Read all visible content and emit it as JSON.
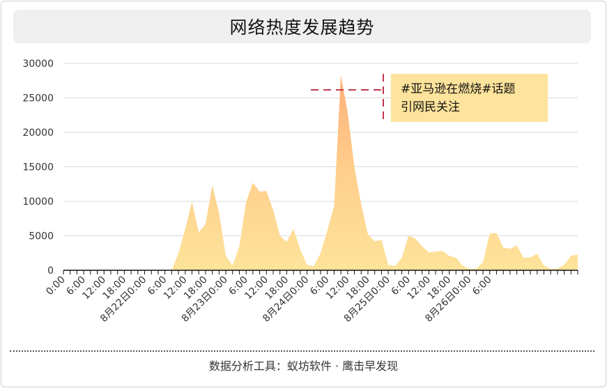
{
  "title": "网络热度发展趋势",
  "footer": "数据分析工具：蚁坊软件 · 鹰击早发现",
  "annotation": {
    "line1": "#亚马逊在燃烧#话题",
    "line2": "引网民关注"
  },
  "colors": {
    "area_top": "#ffac78",
    "area_bottom": "#fde39b",
    "dash": "#c0394f",
    "grid": "#d9d9d9",
    "axis": "#111111"
  },
  "chart_data": {
    "type": "area",
    "title": "网络热度发展趋势",
    "xlabel": "",
    "ylabel": "",
    "ylim": [
      0,
      30000
    ],
    "y_ticks": [
      0,
      5000,
      10000,
      15000,
      20000,
      25000,
      30000
    ],
    "grid": true,
    "x_tick_labels": [
      "0:00",
      "6:00",
      "12:00",
      "18:00",
      "8月22日0:00",
      "6:00",
      "12:00",
      "18:00",
      "8月23日0:00",
      "6:00",
      "12:00",
      "18:00",
      "8月24日0:00",
      "6:00",
      "12:00",
      "18:00",
      "8月25日0:00",
      "6:00",
      "12:00",
      "18:00",
      "8月26日0:00",
      "6:00"
    ],
    "x_tick_every_hours": 6,
    "x_interval_hours": 2,
    "series": [
      {
        "values": [
          0,
          0,
          0,
          0,
          0,
          0,
          0,
          0,
          0,
          0,
          0,
          0,
          0,
          0,
          0,
          0,
          0,
          2500,
          6000,
          9900,
          5500,
          6700,
          12300,
          8300,
          2100,
          700,
          3500,
          9900,
          12700,
          11400,
          11500,
          8700,
          5000,
          4100,
          6000,
          3000,
          800,
          600,
          2500,
          5800,
          9300,
          28300,
          22900,
          14900,
          9600,
          5200,
          4200,
          4400,
          800,
          600,
          1800,
          5000,
          4600,
          3500,
          2600,
          2700,
          2800,
          2100,
          1800,
          700,
          200,
          200,
          1200,
          5300,
          5400,
          3300,
          3100,
          3600,
          1800,
          1900,
          2400,
          700,
          200,
          200,
          800,
          2100,
          2300
        ]
      }
    ]
  }
}
